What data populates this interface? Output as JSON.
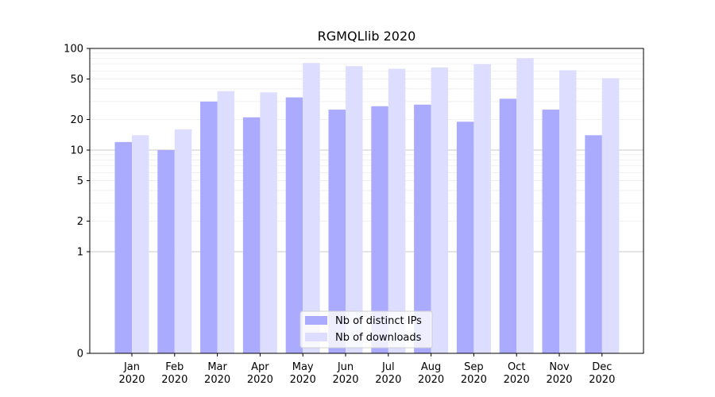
{
  "chart_data": {
    "type": "bar",
    "title": "RGMQLlib 2020",
    "xlabel": "",
    "ylabel": "",
    "yscale": "symlog",
    "ylim": [
      0,
      100
    ],
    "yticks": [
      {
        "value": 0,
        "label": "0"
      },
      {
        "value": 1,
        "label": "1"
      },
      {
        "value": 2,
        "label": "2"
      },
      {
        "value": 5,
        "label": "5"
      },
      {
        "value": 10,
        "label": "10"
      },
      {
        "value": 20,
        "label": "20"
      },
      {
        "value": 50,
        "label": "50"
      },
      {
        "value": 100,
        "label": "100"
      }
    ],
    "grid": true,
    "legend_position": "bottom-center",
    "categories": [
      {
        "month": "Jan",
        "year": "2020"
      },
      {
        "month": "Feb",
        "year": "2020"
      },
      {
        "month": "Mar",
        "year": "2020"
      },
      {
        "month": "Apr",
        "year": "2020"
      },
      {
        "month": "May",
        "year": "2020"
      },
      {
        "month": "Jun",
        "year": "2020"
      },
      {
        "month": "Jul",
        "year": "2020"
      },
      {
        "month": "Aug",
        "year": "2020"
      },
      {
        "month": "Sep",
        "year": "2020"
      },
      {
        "month": "Oct",
        "year": "2020"
      },
      {
        "month": "Nov",
        "year": "2020"
      },
      {
        "month": "Dec",
        "year": "2020"
      }
    ],
    "series": [
      {
        "name": "Nb of distinct IPs",
        "color": "#aaaaff",
        "values": [
          12,
          10,
          30,
          21,
          33,
          25,
          27,
          28,
          19,
          32,
          25,
          14
        ]
      },
      {
        "name": "Nb of downloads",
        "color": "#ddddff",
        "values": [
          14,
          16,
          38,
          37,
          72,
          67,
          63,
          65,
          70,
          80,
          61,
          51
        ]
      }
    ]
  }
}
